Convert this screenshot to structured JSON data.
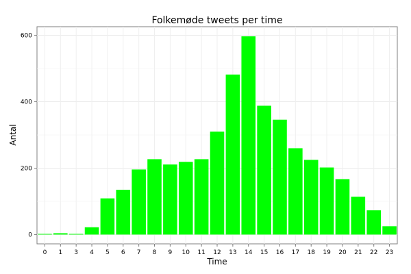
{
  "chart_data": {
    "type": "bar",
    "title": "Folkemøde tweets per time",
    "xlabel": "Time",
    "ylabel": "Antal",
    "categories": [
      "0",
      "1",
      "3",
      "4",
      "5",
      "6",
      "7",
      "8",
      "9",
      "10",
      "11",
      "12",
      "13",
      "14",
      "15",
      "16",
      "17",
      "18",
      "19",
      "20",
      "21",
      "22",
      "23"
    ],
    "values": [
      2,
      4,
      2,
      22,
      109,
      135,
      196,
      227,
      211,
      219,
      227,
      310,
      482,
      597,
      388,
      346,
      260,
      225,
      202,
      167,
      114,
      73,
      25
    ],
    "yticks": [
      0,
      200,
      400,
      600
    ],
    "ylim": [
      -28,
      626
    ],
    "grid": true,
    "bar_color": "#00ff00"
  }
}
